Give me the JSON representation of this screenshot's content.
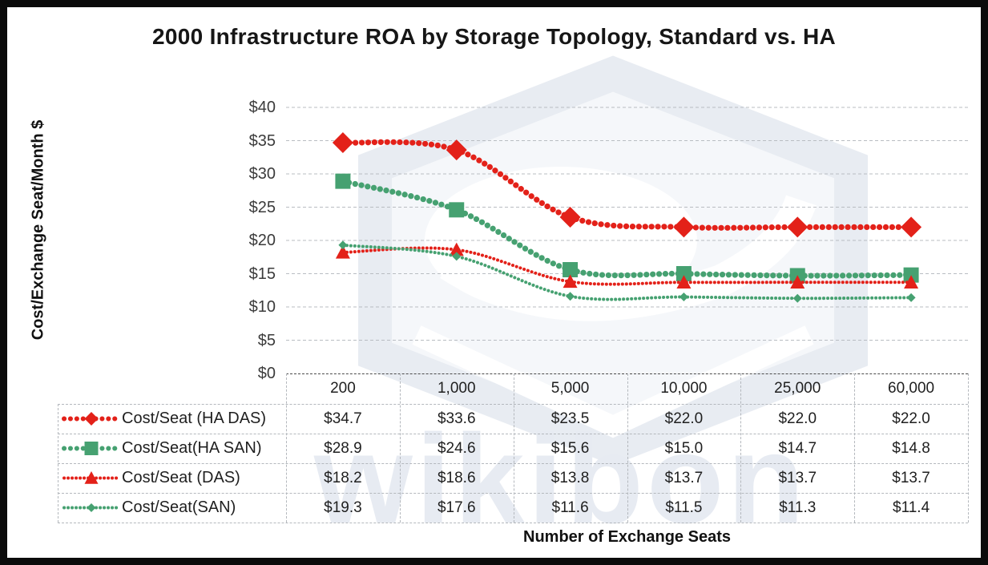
{
  "watermark": {
    "text": "wikibon"
  },
  "chart_data": {
    "type": "line",
    "title": "2000 Infrastructure ROA by Storage Topology, Standard vs. HA",
    "xlabel": "Number of Exchange Seats",
    "ylabel": "Cost/Exchange Seat/Month $",
    "categories": [
      "200",
      "1,000",
      "5,000",
      "10,000",
      "25,000",
      "60,000"
    ],
    "ylim": [
      0,
      40
    ],
    "ytick_step": 5,
    "ytick_prefix": "$",
    "grid": "horizontal dashed gridlines every $5",
    "legend_position": "data table below chart, series names at left",
    "value_prefix": "$",
    "colors": {
      "red_series": "#e32119",
      "green_series": "#46a171"
    },
    "series": [
      {
        "name": "Cost/Seat (HA DAS)",
        "color": "#e32119",
        "marker": "diamond",
        "line": "thick-dotted",
        "values": [
          34.7,
          33.6,
          23.5,
          22.0,
          22.0,
          22.0
        ]
      },
      {
        "name": "Cost/Seat(HA SAN)",
        "color": "#46a171",
        "marker": "square",
        "line": "thick-dotted",
        "values": [
          28.9,
          24.6,
          15.6,
          15.0,
          14.7,
          14.8
        ]
      },
      {
        "name": "Cost/Seat (DAS)",
        "color": "#e32119",
        "marker": "triangle",
        "line": "thin-dotted",
        "values": [
          18.2,
          18.6,
          13.8,
          13.7,
          13.7,
          13.7
        ]
      },
      {
        "name": "Cost/Seat(SAN)",
        "color": "#46a171",
        "marker": "diamond-small",
        "line": "thin-dotted",
        "values": [
          19.3,
          17.6,
          11.6,
          11.5,
          11.3,
          11.4
        ]
      }
    ]
  }
}
